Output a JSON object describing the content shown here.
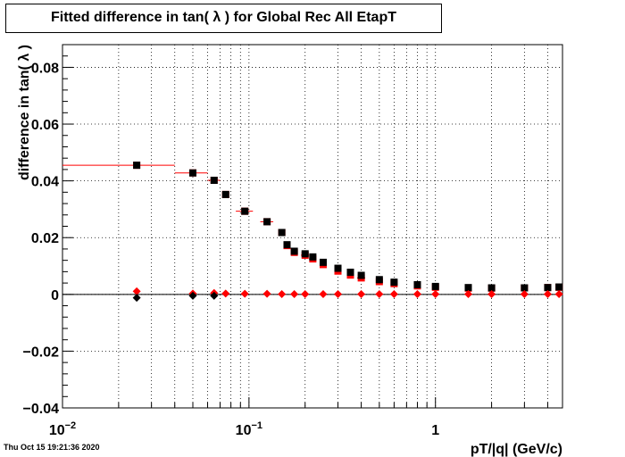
{
  "timestamp": "Thu Oct 15 19:21:36 2020",
  "chart_data": {
    "type": "scatter",
    "title": "Fitted difference in tan( λ ) for Global Rec All EtapT",
    "xlabel": "pT/|q| (GeV/c)",
    "ylabel": "difference in tan( λ )",
    "x_scale": "log",
    "xlim": [
      0.01,
      4.8
    ],
    "ylim": [
      -0.04,
      0.088
    ],
    "grid": true,
    "x_tick_labels": [
      {
        "value": 0.01,
        "base": "10",
        "exp": "−2"
      },
      {
        "value": 0.1,
        "base": "10",
        "exp": "−1"
      },
      {
        "value": 1,
        "base": "1",
        "exp": ""
      }
    ],
    "y_tick_labels": [
      {
        "value": -0.04,
        "text": "−0.04"
      },
      {
        "value": -0.02,
        "text": "−0.02"
      },
      {
        "value": 0,
        "text": "0"
      },
      {
        "value": 0.02,
        "text": "0.02"
      },
      {
        "value": 0.04,
        "text": "0.04"
      },
      {
        "value": 0.06,
        "text": "0.06"
      },
      {
        "value": 0.08,
        "text": "0.08"
      }
    ],
    "series": [
      {
        "color": "#ff0000",
        "marker": "square",
        "x": [
          0.025,
          0.05,
          0.065,
          0.075,
          0.095,
          0.125,
          0.15,
          0.16,
          0.175,
          0.2,
          0.22,
          0.25,
          0.3,
          0.35,
          0.4,
          0.5,
          0.6,
          0.8,
          1.0,
          1.5,
          2.0,
          3.0,
          4.0,
          4.6
        ],
        "y": [
          0.0455,
          0.0428,
          0.0402,
          0.0352,
          0.0293,
          0.0256,
          0.0218,
          0.0172,
          0.0148,
          0.0138,
          0.0125,
          0.0105,
          0.0082,
          0.0068,
          0.0058,
          0.0045,
          0.0038,
          0.003,
          0.0025,
          0.0022,
          0.0022,
          0.0023,
          0.0024,
          0.0025
        ],
        "xerr_low": [
          0.015,
          0.01,
          0.005,
          0.003,
          0.01,
          0.01,
          0.005,
          0.005,
          0.005,
          0.01,
          0.01,
          0.01,
          0.01,
          0.01,
          0.02,
          0.02,
          0.02,
          0.02,
          0.02,
          0.05,
          0.05,
          0.05,
          0.05,
          0.05
        ],
        "xerr_high": [
          0.015,
          0.01,
          0.005,
          0.003,
          0.01,
          0.01,
          0.005,
          0.005,
          0.005,
          0.01,
          0.01,
          0.01,
          0.01,
          0.01,
          0.02,
          0.02,
          0.02,
          0.02,
          0.02,
          0.05,
          0.05,
          0.05,
          0.05,
          0.05
        ]
      },
      {
        "color": "#000000",
        "marker": "square",
        "x": [
          0.025,
          0.05,
          0.065,
          0.075,
          0.095,
          0.125,
          0.15,
          0.16,
          0.175,
          0.2,
          0.22,
          0.25,
          0.3,
          0.35,
          0.4,
          0.5,
          0.6,
          0.8,
          1.0,
          1.5,
          2.0,
          3.0,
          4.0,
          4.6
        ],
        "y": [
          0.0455,
          0.0428,
          0.0402,
          0.0352,
          0.0293,
          0.0256,
          0.0218,
          0.0175,
          0.0152,
          0.0143,
          0.0132,
          0.0113,
          0.0092,
          0.0078,
          0.0067,
          0.0052,
          0.0043,
          0.0034,
          0.0028,
          0.0024,
          0.0023,
          0.0023,
          0.0024,
          0.0026
        ]
      },
      {
        "color": "#ff0000",
        "marker": "diamond",
        "x": [
          0.025,
          0.05,
          0.065,
          0.075,
          0.095,
          0.125,
          0.15,
          0.175,
          0.2,
          0.25,
          0.3,
          0.4,
          0.5,
          0.6,
          0.8,
          1.0,
          1.5,
          2.0,
          3.0,
          4.0,
          4.6
        ],
        "y": [
          0.0011,
          0.0003,
          0.0005,
          0.0003,
          0.0002,
          0.0002,
          0.0001,
          0.0001,
          0.0001,
          0.0001,
          0.0001,
          0.0001,
          0.0001,
          0.0001,
          0.0001,
          0.0001,
          0.0001,
          0.0001,
          0.0001,
          0.0001,
          0.0001
        ]
      },
      {
        "color": "#000000",
        "marker": "diamond",
        "x": [
          0.025,
          0.05,
          0.065
        ],
        "y": [
          -0.0012,
          -0.0005,
          -0.0005
        ]
      }
    ]
  }
}
